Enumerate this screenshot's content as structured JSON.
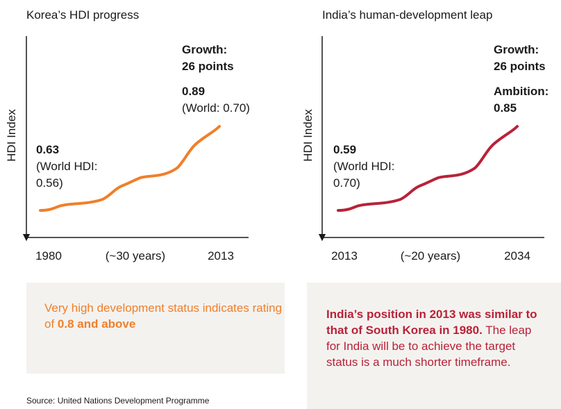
{
  "panels": [
    {
      "title": "Korea’s HDI progress",
      "y_label": "HDI Index",
      "growth": [
        "Growth:",
        "26 points"
      ],
      "end": {
        "value": "0.89",
        "note": [
          "(World: 0.70)"
        ]
      },
      "start": {
        "value": "0.63",
        "note": [
          "(World HDI:",
          "0.56)"
        ]
      },
      "x_labels": [
        "1980",
        "(~30 years)",
        "2013"
      ],
      "box": {
        "text": "Very high development status indicates rating of ",
        "bold": "0.8 and above"
      }
    },
    {
      "title": "India’s human-development leap",
      "y_label": "HDI Index",
      "growth": [
        "Growth:",
        "26 points"
      ],
      "end": {
        "value": "Ambition:",
        "note": [
          "0.85"
        ]
      },
      "start": {
        "value": "0.59",
        "note": [
          "(World HDI:",
          "0.70)"
        ]
      },
      "x_labels": [
        "2013",
        "(~20 years)",
        "2034"
      ],
      "box": {
        "bold": "India’s position in 2013 was similar to that of South Korea in 1980.",
        "text": " The leap for India will be to achieve the target status is a much shorter timeframe."
      }
    }
  ],
  "source": "Source: United Nations Development Programme"
}
